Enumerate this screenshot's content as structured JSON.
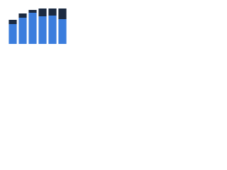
{
  "chart_data": {
    "type": "stacked-bar",
    "categories": [
      null,
      null,
      null,
      null,
      null,
      null
    ],
    "series": [
      {
        "color": "#3b7ddd",
        "values": [
          28,
          37,
          44,
          39,
          40,
          35
        ]
      },
      {
        "color": "#1b2a41",
        "values": [
          6,
          6,
          4,
          11,
          10,
          15
        ]
      }
    ],
    "ylim": [
      0,
      55
    ]
  }
}
